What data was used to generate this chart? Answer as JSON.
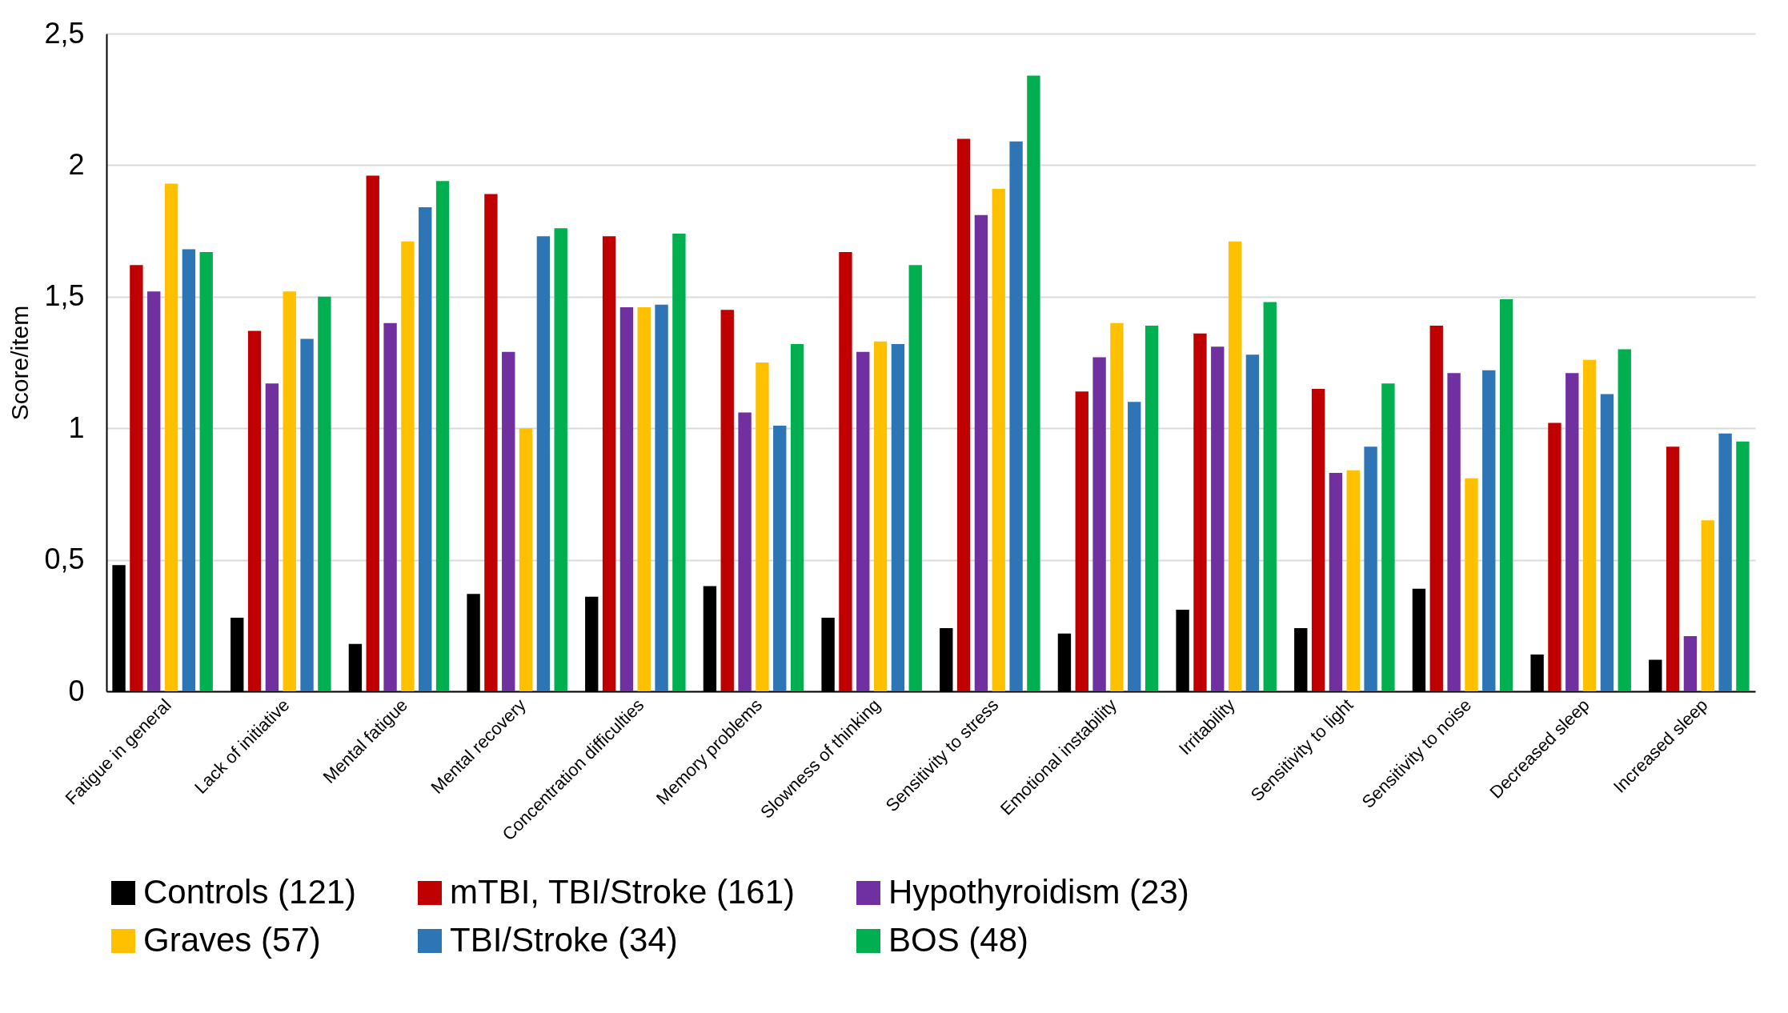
{
  "chart_data": {
    "type": "bar",
    "ylabel": "Score/item",
    "categories": [
      "Fatigue in general",
      "Lack of initiative",
      "Mental fatigue",
      "Mental recovery",
      "Concentration difficulties",
      "Memory problems",
      "Slowness of thinking",
      "Sensitivity to stress",
      "Emotional instability",
      "Irritability",
      "Sensitivity to light",
      "Sensitivity to noise",
      "Decreased sleep",
      "Increased sleep"
    ],
    "series": [
      {
        "name": "Controls (121)",
        "color": "#000000",
        "values": [
          0.48,
          0.28,
          0.18,
          0.37,
          0.36,
          0.4,
          0.28,
          0.24,
          0.22,
          0.31,
          0.24,
          0.39,
          0.14,
          0.12
        ]
      },
      {
        "name": "mTBI, TBI/Stroke (161)",
        "color": "#c00000",
        "values": [
          1.62,
          1.37,
          1.96,
          1.89,
          1.73,
          1.45,
          1.67,
          2.1,
          1.14,
          1.36,
          1.15,
          1.39,
          1.02,
          0.93
        ]
      },
      {
        "name": "Hypothyroidism (23)",
        "color": "#7030a0",
        "values": [
          1.52,
          1.17,
          1.4,
          1.29,
          1.46,
          1.06,
          1.29,
          1.81,
          1.27,
          1.31,
          0.83,
          1.21,
          1.21,
          0.21
        ]
      },
      {
        "name": "Graves (57)",
        "color": "#ffc000",
        "values": [
          1.93,
          1.52,
          1.71,
          1.0,
          1.46,
          1.25,
          1.33,
          1.91,
          1.4,
          1.71,
          0.84,
          0.81,
          1.26,
          0.65
        ]
      },
      {
        "name": "TBI/Stroke (34)",
        "color": "#2e75b6",
        "values": [
          1.68,
          1.34,
          1.84,
          1.73,
          1.47,
          1.01,
          1.32,
          2.09,
          1.1,
          1.28,
          0.93,
          1.22,
          1.13,
          0.98
        ]
      },
      {
        "name": "BOS (48)",
        "color": "#00b050",
        "values": [
          1.67,
          1.5,
          1.94,
          1.76,
          1.74,
          1.32,
          1.62,
          2.34,
          1.39,
          1.48,
          1.17,
          1.49,
          1.3,
          0.95
        ]
      }
    ],
    "ylim": [
      0,
      2.5
    ],
    "yticks": [
      0,
      {
        "value": 0.5,
        "label": "0,5"
      },
      1,
      {
        "value": 1.5,
        "label": "1,5"
      },
      2,
      {
        "value": 2.5,
        "label": "2,5"
      }
    ],
    "grid": "y",
    "legend": "bottom"
  }
}
